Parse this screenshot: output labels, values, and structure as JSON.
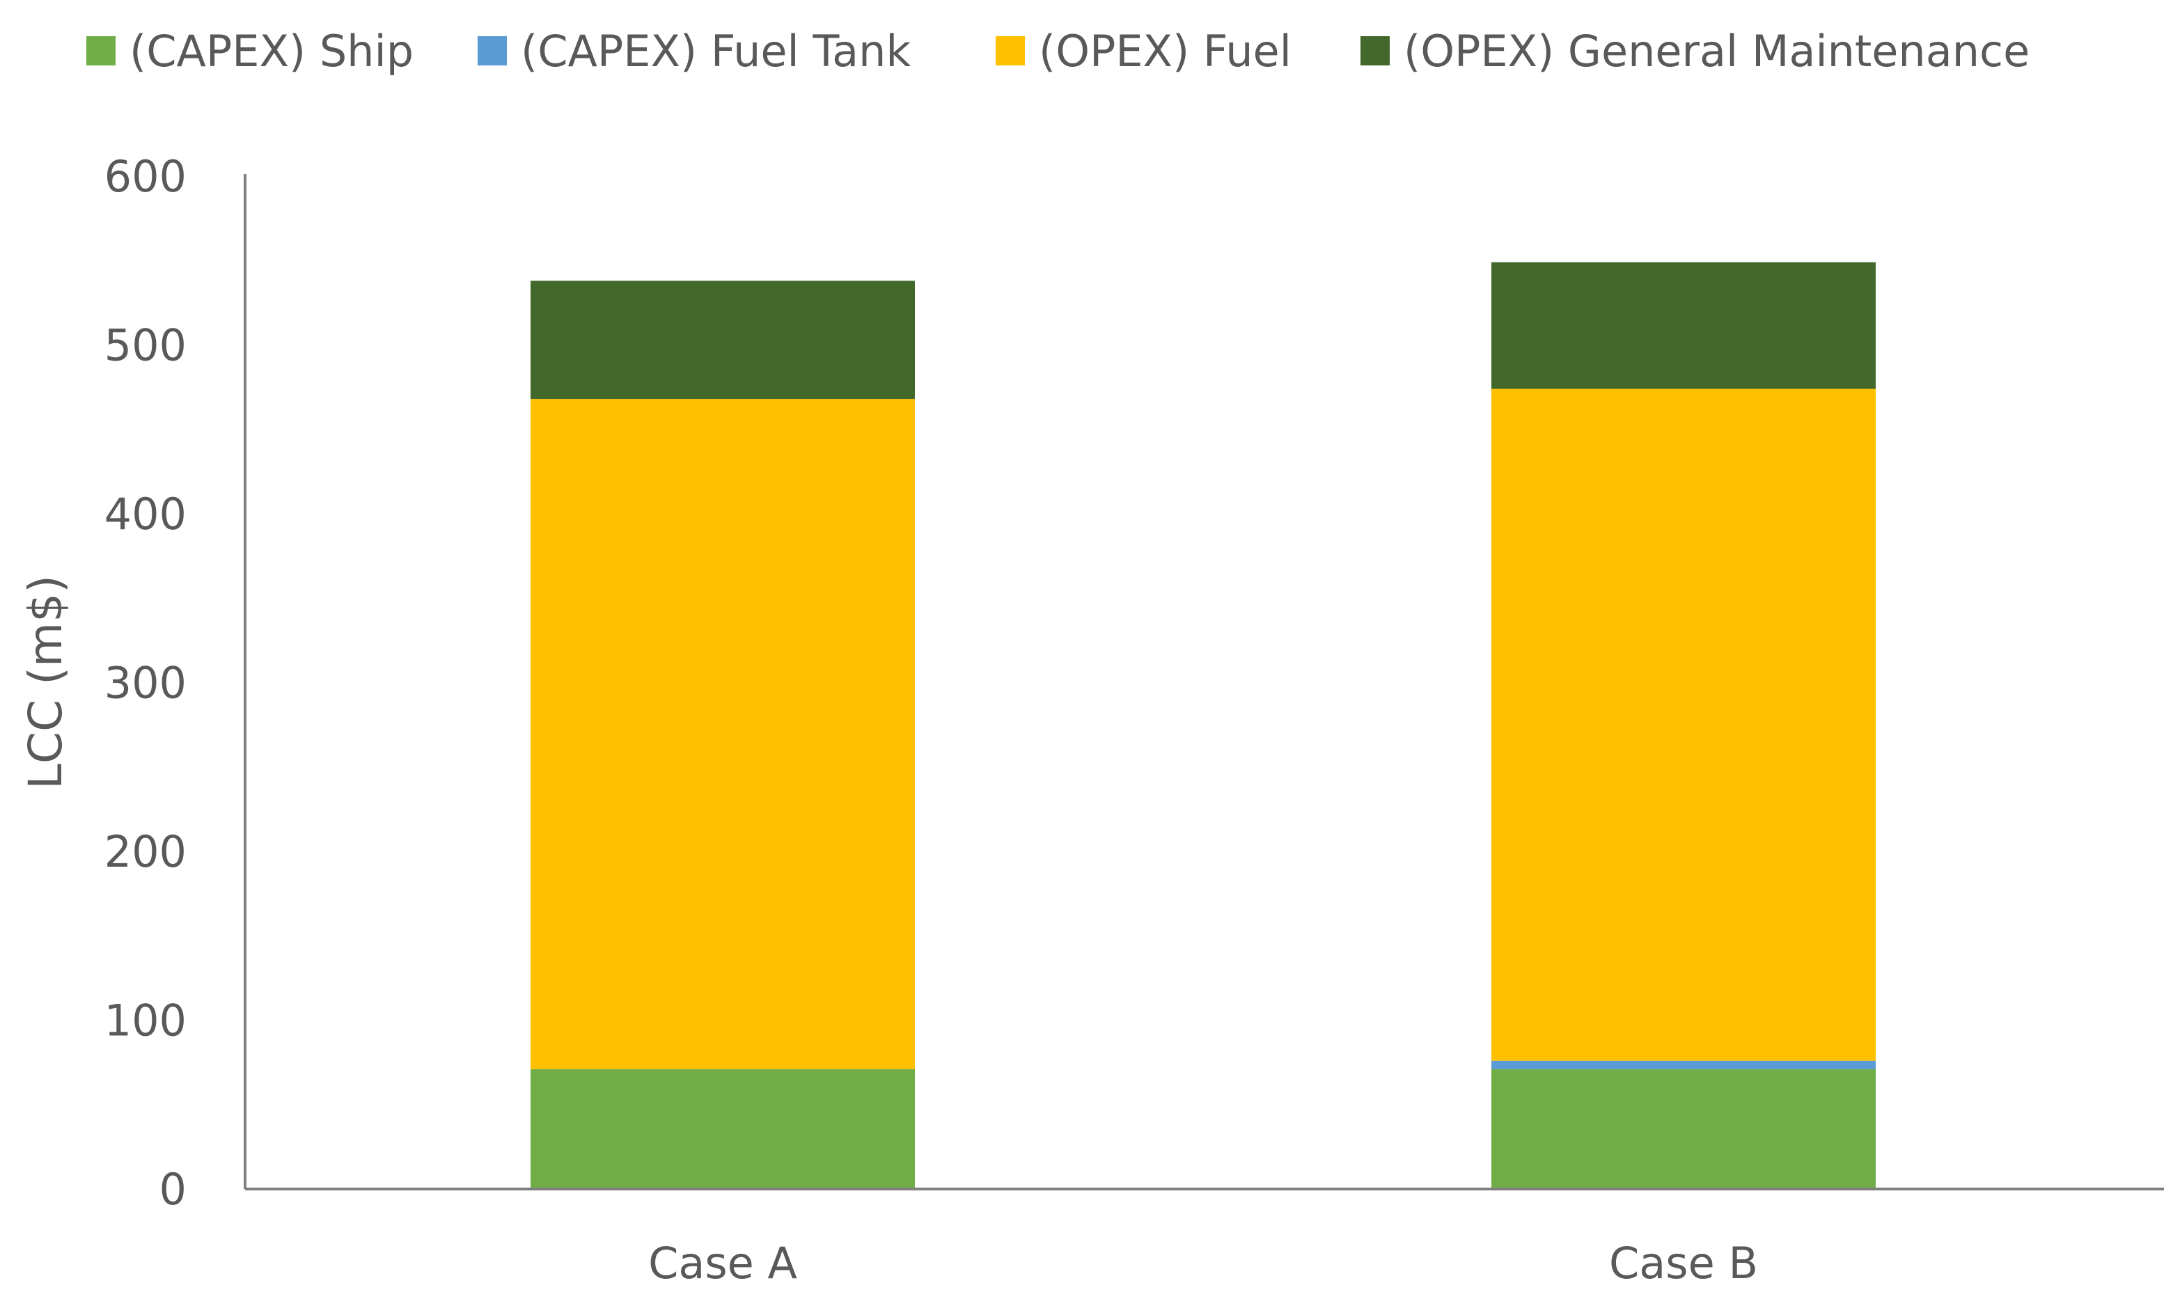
{
  "chart_data": {
    "type": "bar",
    "stacked": true,
    "categories": [
      "Case A",
      "Case B"
    ],
    "series": [
      {
        "name": "(CAPEX) Ship",
        "color": "#70AD47",
        "values": [
          71,
          71
        ]
      },
      {
        "name": "(CAPEX) Fuel Tank",
        "color": "#5B9BD5",
        "values": [
          0,
          5
        ]
      },
      {
        "name": "(OPEX) Fuel",
        "color": "#FFC000",
        "values": [
          397,
          398
        ]
      },
      {
        "name": "(OPEX) General Maintenance",
        "color": "#43682B",
        "values": [
          70,
          75
        ]
      }
    ],
    "ylabel": "LCC (m$)",
    "xlabel": "",
    "ylim": [
      0,
      600
    ],
    "yticks": [
      "0",
      "100",
      "200",
      "300",
      "400",
      "500",
      "600"
    ],
    "grid": false,
    "legend_position": "top"
  }
}
